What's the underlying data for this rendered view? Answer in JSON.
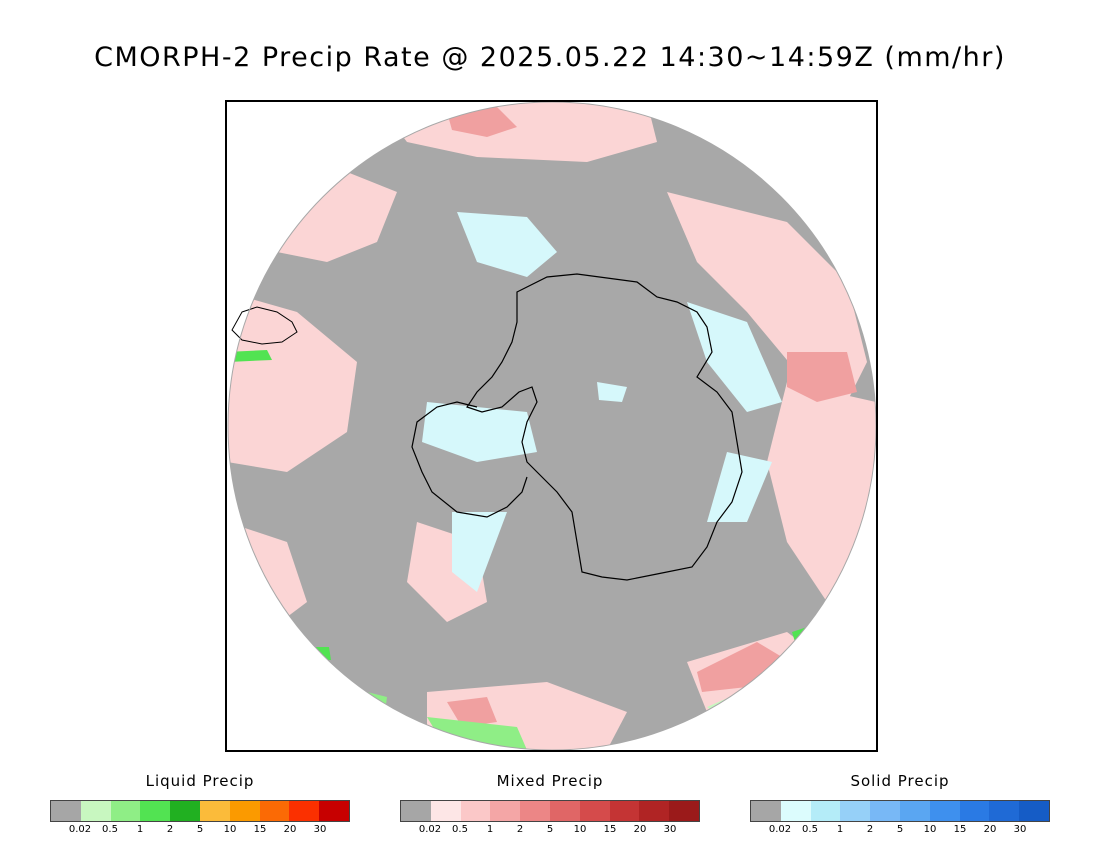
{
  "title": "CMORPH-2 Precip Rate @ 2025.05.22 14:30~14:59Z (mm/hr)",
  "map": {
    "projection": "south-polar-stereographic",
    "nodata_color": "#a8a8a8",
    "ice_color": "#d6f8fb",
    "pink_color": "#fbd5d5",
    "coastline_color": "#000000"
  },
  "legends": [
    {
      "id": "liquid",
      "title": "Liquid Precip",
      "colors": [
        "#a6a6a6",
        "#c8f7c0",
        "#8fee86",
        "#52e352",
        "#21b021",
        "#fbbb3a",
        "#fb9a00",
        "#fb6a05",
        "#fb3000",
        "#c70000"
      ],
      "ticks": [
        "0.02",
        "0.5",
        "1",
        "2",
        "5",
        "10",
        "15",
        "20",
        "30"
      ]
    },
    {
      "id": "mixed",
      "title": "Mixed Precip",
      "colors": [
        "#a6a6a6",
        "#fde6e6",
        "#fbc8c8",
        "#f4a6a6",
        "#ec8686",
        "#e06666",
        "#d54b4b",
        "#c43434",
        "#b02424",
        "#9b1a1a"
      ],
      "ticks": [
        "0.02",
        "0.5",
        "1",
        "2",
        "5",
        "10",
        "15",
        "20",
        "30"
      ]
    },
    {
      "id": "solid",
      "title": "Solid Precip",
      "colors": [
        "#a6a6a6",
        "#dcfcfd",
        "#b4ecf8",
        "#96d0f8",
        "#78b8f6",
        "#5aa6f2",
        "#3e90ee",
        "#2a7ae4",
        "#1f6ad6",
        "#155cc6"
      ],
      "ticks": [
        "0.02",
        "0.5",
        "1",
        "2",
        "5",
        "10",
        "15",
        "20",
        "30"
      ]
    }
  ]
}
